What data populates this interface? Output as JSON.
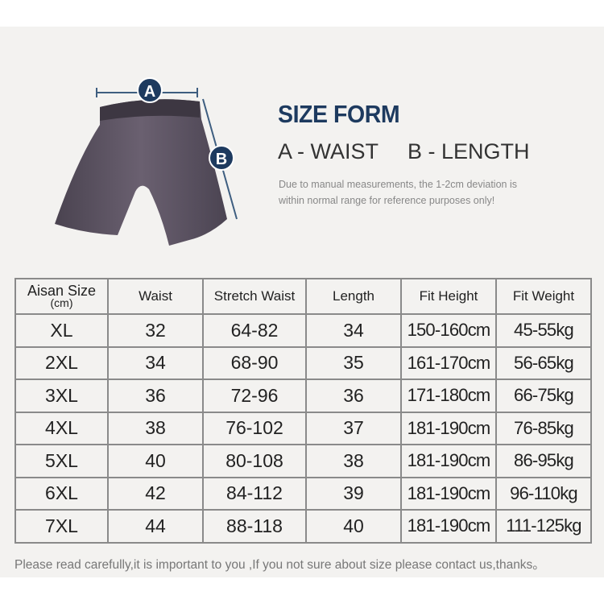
{
  "header": {
    "title": "SIZE FORM",
    "label_a": "A - WAIST",
    "label_b": "B - LENGTH",
    "note": "Due to manual measurements, the 1-2cm deviation is within normal range for reference purposes only!",
    "marker_a": "A",
    "marker_b": "B",
    "brand_color": "#1d3a5f"
  },
  "table": {
    "headers": [
      "Aisan Size",
      "Waist",
      "Stretch Waist",
      "Length",
      "Fit Height",
      "Fit Weight"
    ],
    "header_unit": "(cm)",
    "rows": [
      [
        "XL",
        "32",
        "64-82",
        "34",
        "150-160cm",
        "45-55kg"
      ],
      [
        "2XL",
        "34",
        "68-90",
        "35",
        "161-170cm",
        "56-65kg"
      ],
      [
        "3XL",
        "36",
        "72-96",
        "36",
        "171-180cm",
        "66-75kg"
      ],
      [
        "4XL",
        "38",
        "76-102",
        "37",
        "181-190cm",
        "76-85kg"
      ],
      [
        "5XL",
        "40",
        "80-108",
        "38",
        "181-190cm",
        "86-95kg"
      ],
      [
        "6XL",
        "42",
        "84-112",
        "39",
        "181-190cm",
        "96-110kg"
      ],
      [
        "7XL",
        "44",
        "88-118",
        "40",
        "181-190cm",
        "111-125kg"
      ]
    ]
  },
  "footer": "Please read carefully,it is important to you ,If you not sure about size please contact us,thanks。"
}
